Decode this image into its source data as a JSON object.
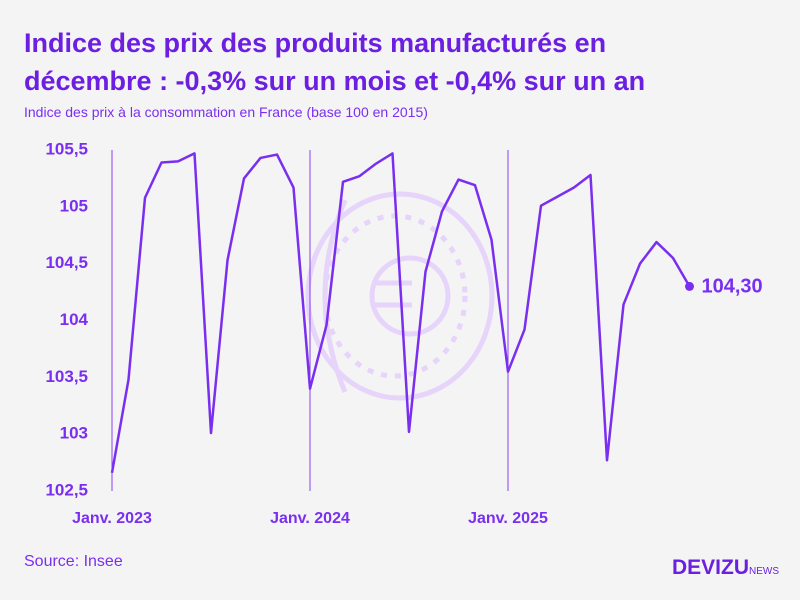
{
  "chart_data": {
    "type": "line",
    "title": "Indice des prix des produits manufacturés en décembre : -0,3% sur un mois et -0,4% sur un an",
    "subtitle": "Indice des prix à la consommation en France (base 100 en 2015)",
    "source": "Source: Insee",
    "brand": "DEVIZU",
    "brand_suffix": "NEWS",
    "categories": [
      "Janv. 2023",
      null,
      null,
      null,
      null,
      null,
      null,
      null,
      null,
      null,
      null,
      null,
      "Janv. 2024",
      null,
      null,
      null,
      null,
      null,
      null,
      null,
      null,
      null,
      null,
      null,
      "Janv. 2025",
      null,
      null,
      null,
      null,
      null,
      null,
      null,
      null,
      null,
      null,
      null
    ],
    "series": [
      {
        "name": "Indice",
        "color": "#7a2ff0",
        "values": [
          102.66,
          103.48,
          105.08,
          105.39,
          105.4,
          105.47,
          103.01,
          104.53,
          105.25,
          105.43,
          105.46,
          105.17,
          103.4,
          103.96,
          105.22,
          105.27,
          105.38,
          105.47,
          103.02,
          104.43,
          104.96,
          105.24,
          105.19,
          104.71,
          103.55,
          103.92,
          105.01,
          105.09,
          105.17,
          105.28,
          102.77,
          104.14,
          104.5,
          104.69,
          104.55,
          104.3
        ],
        "value_labels": [
          null,
          null,
          null,
          null,
          null,
          null,
          null,
          null,
          null,
          null,
          null,
          null,
          null,
          null,
          null,
          null,
          null,
          null,
          null,
          null,
          null,
          null,
          null,
          null,
          null,
          null,
          null,
          null,
          null,
          null,
          null,
          null,
          null,
          null,
          null,
          "104,30"
        ]
      }
    ],
    "ylim": [
      102.5,
      105.5
    ],
    "yticks": [
      {
        "value": 102.5,
        "label": "102,5"
      },
      103,
      {
        "value": 103.5,
        "label": "103,5"
      },
      104,
      {
        "value": 104.5,
        "label": "104,5"
      },
      105,
      {
        "value": 105.5,
        "label": "105,5"
      }
    ],
    "grid": false
  }
}
